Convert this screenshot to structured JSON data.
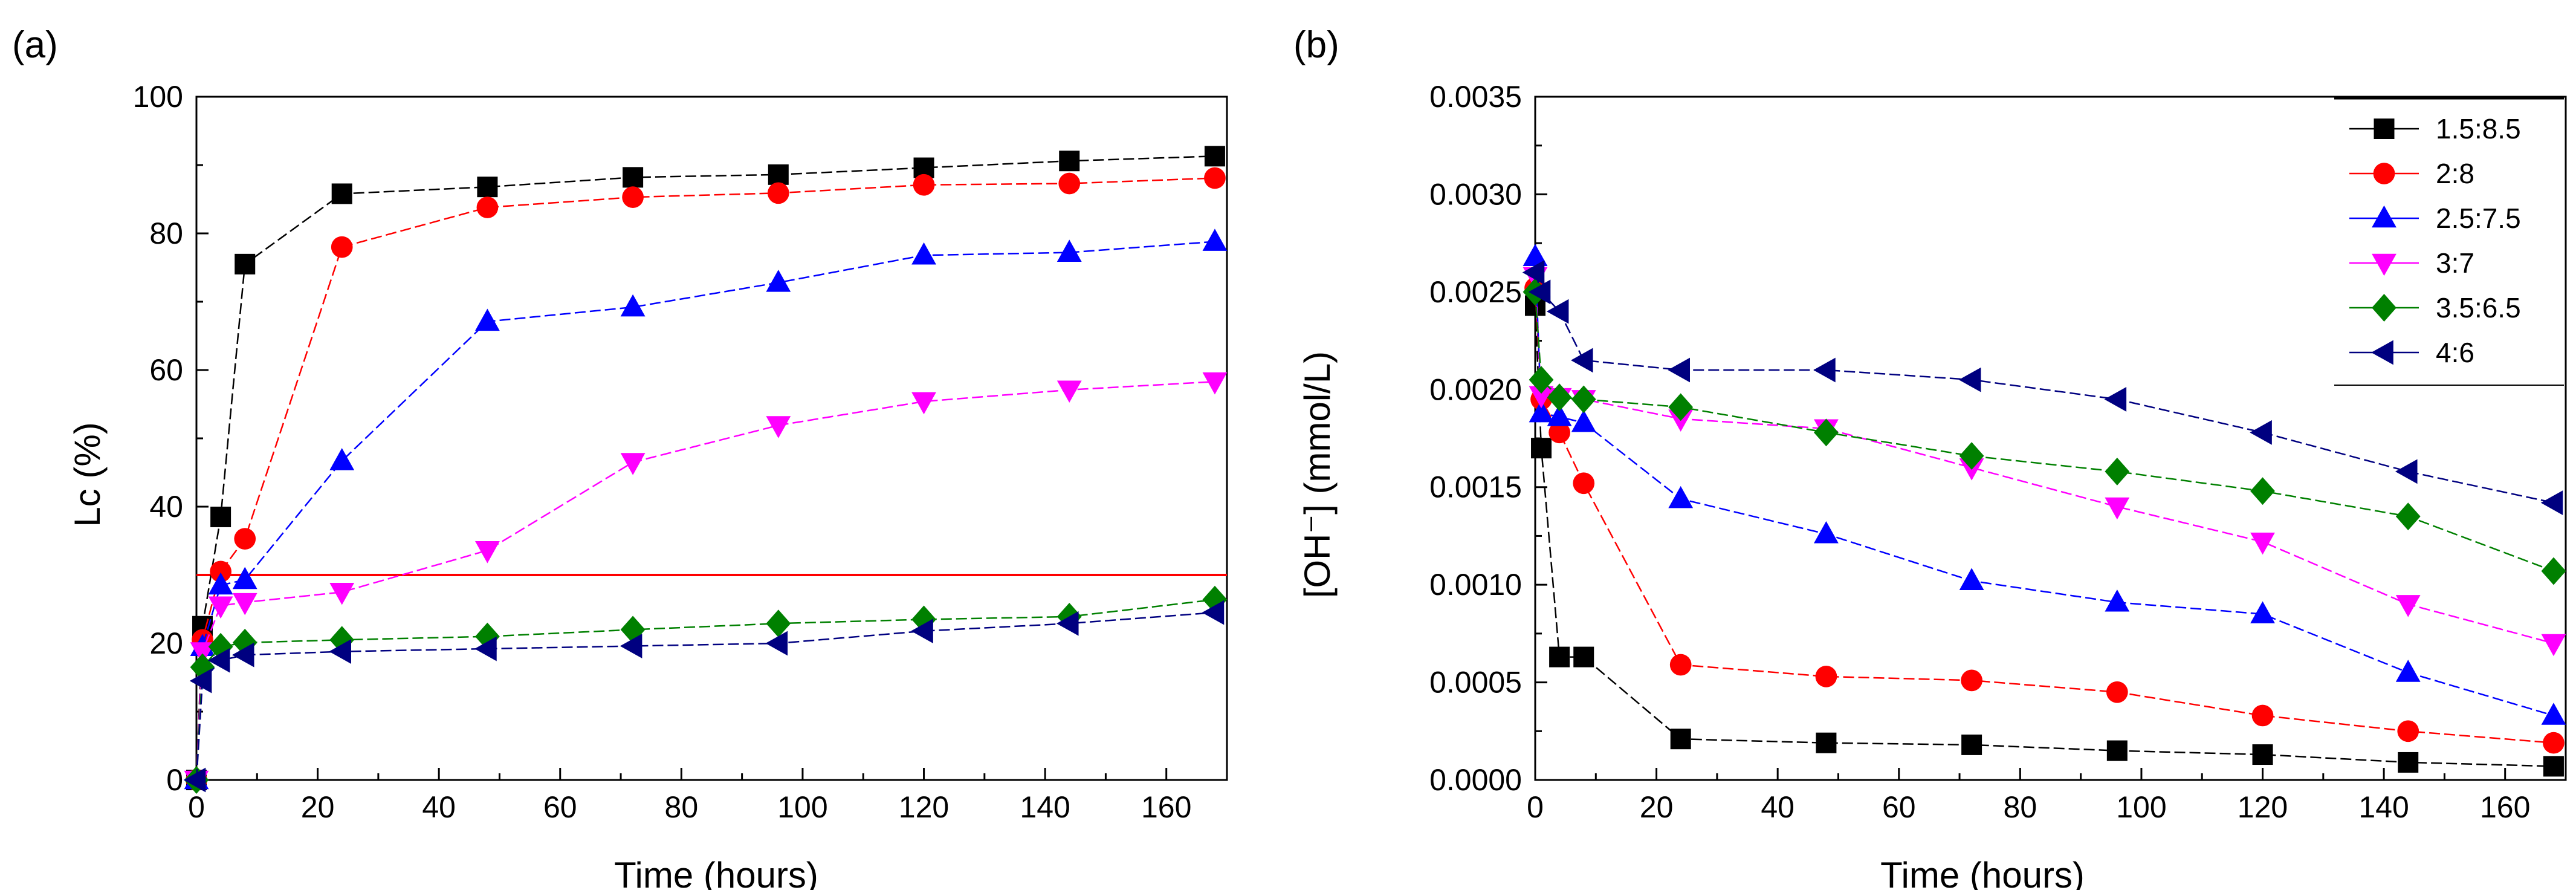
{
  "chart_data": [
    {
      "panel": "(a)",
      "type": "line",
      "title": "",
      "xlabel": "Time (hours)",
      "ylabel": "Lc (%)",
      "xlim": [
        0,
        170
      ],
      "ylim": [
        0,
        100
      ],
      "xticks": [
        0,
        20,
        40,
        60,
        80,
        100,
        120,
        140,
        160
      ],
      "yticks": [
        0,
        20,
        40,
        60,
        80,
        100
      ],
      "xtick_labels": [
        "0",
        "20",
        "40",
        "60",
        "80",
        "100",
        "120",
        "140",
        "160"
      ],
      "ytick_labels": [
        "0",
        "20",
        "40",
        "60",
        "80",
        "100"
      ],
      "hline": {
        "y": 30,
        "color": "#ff0000"
      },
      "x": [
        0,
        1,
        4,
        8,
        24,
        48,
        72,
        96,
        120,
        144,
        168
      ],
      "series": [
        {
          "name": "1.5:8.5",
          "marker": "square",
          "color": "#000000",
          "values": [
            0,
            22.5,
            38.5,
            75.5,
            85.8,
            86.8,
            88.2,
            88.6,
            89.6,
            90.6,
            91.3
          ]
        },
        {
          "name": "2:8",
          "marker": "circle",
          "color": "#ff0000",
          "values": [
            0,
            20.5,
            30.5,
            35.3,
            78.0,
            83.8,
            85.3,
            85.9,
            87.1,
            87.3,
            88.1
          ]
        },
        {
          "name": "2.5:7.5",
          "marker": "triangle-up",
          "color": "#0000ff",
          "values": [
            0,
            19.5,
            28.5,
            29.3,
            46.7,
            67.1,
            69.2,
            72.8,
            76.8,
            77.2,
            78.8
          ]
        },
        {
          "name": "3:7",
          "marker": "triangle-down",
          "color": "#ff00ff",
          "values": [
            0,
            18.8,
            25.5,
            26.0,
            27.5,
            33.6,
            46.5,
            51.9,
            55.4,
            57.1,
            58.3
          ]
        },
        {
          "name": "3.5:6.5",
          "marker": "diamond",
          "color": "#008000",
          "values": [
            0,
            16.5,
            19.5,
            20.1,
            20.5,
            21.0,
            22.0,
            22.9,
            23.5,
            23.9,
            26.4
          ]
        },
        {
          "name": "4:6",
          "marker": "triangle-left",
          "color": "#000080",
          "values": [
            0,
            14.5,
            17.5,
            18.3,
            18.8,
            19.2,
            19.6,
            20.0,
            21.8,
            22.9,
            24.5
          ]
        }
      ]
    },
    {
      "panel": "(b)",
      "type": "line",
      "title": "",
      "xlabel": "Time (hours)",
      "ylabel": "[OH⁻] (mmol/L)",
      "xlim": [
        0,
        170
      ],
      "ylim": [
        0,
        0.0035
      ],
      "xticks": [
        0,
        20,
        40,
        60,
        80,
        100,
        120,
        140,
        160
      ],
      "yticks": [
        0,
        0.0005,
        0.001,
        0.0015,
        0.002,
        0.0025,
        0.003,
        0.0035
      ],
      "xtick_labels": [
        "0",
        "20",
        "40",
        "60",
        "80",
        "100",
        "120",
        "140",
        "160"
      ],
      "ytick_labels": [
        "0.0000",
        "0.0005",
        "0.0010",
        "0.0015",
        "0.0020",
        "0.0025",
        "0.0030",
        "0.0035"
      ],
      "legend_position": "top-right",
      "x": [
        0,
        1,
        4,
        8,
        24,
        48,
        72,
        96,
        120,
        144,
        168
      ],
      "series": [
        {
          "name": "1.5:8.5",
          "marker": "square",
          "color": "#000000",
          "values": [
            0.00243,
            0.0017,
            0.00063,
            0.00063,
            0.00021,
            0.00019,
            0.00018,
            0.00015,
            0.00013,
            9e-05,
            7e-05
          ]
        },
        {
          "name": "2:8",
          "marker": "circle",
          "color": "#ff0000",
          "values": [
            0.00252,
            0.00195,
            0.00178,
            0.00152,
            0.00059,
            0.00053,
            0.00051,
            0.00045,
            0.00033,
            0.00025,
            0.00019
          ]
        },
        {
          "name": "2.5:7.5",
          "marker": "triangle-up",
          "color": "#0000ff",
          "values": [
            0.00268,
            0.00188,
            0.00186,
            0.00183,
            0.00144,
            0.00126,
            0.00102,
            0.00091,
            0.00085,
            0.00055,
            0.00033
          ]
        },
        {
          "name": "3:7",
          "marker": "triangle-down",
          "color": "#ff00ff",
          "values": [
            0.00258,
            0.00197,
            0.00196,
            0.00195,
            0.00185,
            0.0018,
            0.0016,
            0.0014,
            0.00122,
            0.0009,
            0.0007
          ]
        },
        {
          "name": "3.5:6.5",
          "marker": "diamond",
          "color": "#008000",
          "values": [
            0.0025,
            0.00205,
            0.00196,
            0.00195,
            0.00191,
            0.00178,
            0.00166,
            0.00158,
            0.00148,
            0.00135,
            0.00107
          ]
        },
        {
          "name": "4:6",
          "marker": "triangle-left",
          "color": "#000080",
          "values": [
            0.0026,
            0.0025,
            0.0024,
            0.00215,
            0.0021,
            0.0021,
            0.00205,
            0.00195,
            0.00178,
            0.00158,
            0.00142
          ]
        }
      ]
    }
  ]
}
